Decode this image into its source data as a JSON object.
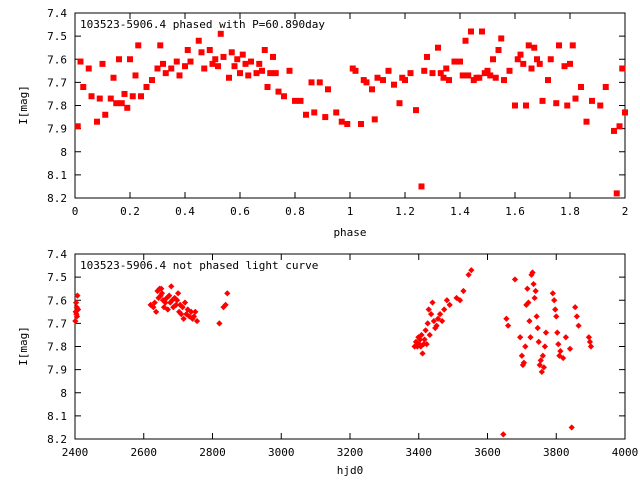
{
  "chart_data": [
    {
      "type": "scatter",
      "title": "103523-5906.4 phased with P=60.890day",
      "xlabel": "phase",
      "ylabel": "I[mag]",
      "xlim": [
        0,
        2
      ],
      "ylim": [
        8.2,
        7.4
      ],
      "y_inverted": true,
      "x_ticks": [
        "0",
        "0.2",
        "0.4",
        "0.6",
        "0.8",
        "1",
        "1.2",
        "1.4",
        "1.6",
        "1.8",
        "2"
      ],
      "y_ticks": [
        "7.4",
        "7.5",
        "7.6",
        "7.7",
        "7.8",
        "7.9",
        "8",
        "8.1",
        "8.2"
      ],
      "marker_color": "#ff0000",
      "grid": false,
      "points": [
        [
          0.01,
          7.89
        ],
        [
          0.02,
          7.61
        ],
        [
          0.03,
          7.72
        ],
        [
          0.05,
          7.64
        ],
        [
          0.06,
          7.76
        ],
        [
          0.08,
          7.87
        ],
        [
          0.09,
          7.77
        ],
        [
          0.1,
          7.62
        ],
        [
          0.11,
          7.84
        ],
        [
          0.13,
          7.77
        ],
        [
          0.14,
          7.68
        ],
        [
          0.15,
          7.79
        ],
        [
          0.16,
          7.6
        ],
        [
          0.17,
          7.79
        ],
        [
          0.18,
          7.75
        ],
        [
          0.19,
          7.81
        ],
        [
          0.2,
          7.6
        ],
        [
          0.21,
          7.76
        ],
        [
          0.22,
          7.67
        ],
        [
          0.23,
          7.54
        ],
        [
          0.24,
          7.76
        ],
        [
          0.26,
          7.72
        ],
        [
          0.28,
          7.69
        ],
        [
          0.3,
          7.64
        ],
        [
          0.31,
          7.54
        ],
        [
          0.32,
          7.62
        ],
        [
          0.33,
          7.66
        ],
        [
          0.35,
          7.64
        ],
        [
          0.37,
          7.61
        ],
        [
          0.38,
          7.67
        ],
        [
          0.4,
          7.63
        ],
        [
          0.41,
          7.56
        ],
        [
          0.42,
          7.61
        ],
        [
          0.45,
          7.52
        ],
        [
          0.46,
          7.57
        ],
        [
          0.47,
          7.64
        ],
        [
          0.49,
          7.56
        ],
        [
          0.5,
          7.62
        ],
        [
          0.51,
          7.6
        ],
        [
          0.52,
          7.63
        ],
        [
          0.53,
          7.49
        ],
        [
          0.54,
          7.59
        ],
        [
          0.56,
          7.68
        ],
        [
          0.57,
          7.57
        ],
        [
          0.58,
          7.63
        ],
        [
          0.59,
          7.6
        ],
        [
          0.6,
          7.66
        ],
        [
          0.61,
          7.58
        ],
        [
          0.62,
          7.62
        ],
        [
          0.63,
          7.67
        ],
        [
          0.64,
          7.61
        ],
        [
          0.66,
          7.66
        ],
        [
          0.67,
          7.62
        ],
        [
          0.68,
          7.65
        ],
        [
          0.69,
          7.56
        ],
        [
          0.7,
          7.72
        ],
        [
          0.71,
          7.66
        ],
        [
          0.72,
          7.59
        ],
        [
          0.73,
          7.66
        ],
        [
          0.74,
          7.74
        ],
        [
          0.76,
          7.76
        ],
        [
          0.78,
          7.65
        ],
        [
          0.8,
          7.78
        ],
        [
          0.82,
          7.78
        ],
        [
          0.84,
          7.84
        ],
        [
          0.86,
          7.7
        ],
        [
          0.87,
          7.83
        ],
        [
          0.89,
          7.7
        ],
        [
          0.91,
          7.85
        ],
        [
          0.92,
          7.73
        ],
        [
          0.95,
          7.83
        ],
        [
          0.97,
          7.87
        ],
        [
          0.99,
          7.88
        ],
        [
          1.01,
          7.64
        ],
        [
          1.02,
          7.65
        ],
        [
          1.04,
          7.88
        ],
        [
          1.05,
          7.69
        ],
        [
          1.06,
          7.7
        ],
        [
          1.08,
          7.73
        ],
        [
          1.09,
          7.86
        ],
        [
          1.1,
          7.68
        ],
        [
          1.12,
          7.69
        ],
        [
          1.14,
          7.65
        ],
        [
          1.16,
          7.71
        ],
        [
          1.18,
          7.79
        ],
        [
          1.19,
          7.68
        ],
        [
          1.2,
          7.69
        ],
        [
          1.22,
          7.66
        ],
        [
          1.24,
          7.82
        ],
        [
          1.26,
          8.15
        ],
        [
          1.27,
          7.65
        ],
        [
          1.28,
          7.59
        ],
        [
          1.3,
          7.66
        ],
        [
          1.32,
          7.55
        ],
        [
          1.33,
          7.66
        ],
        [
          1.34,
          7.68
        ],
        [
          1.35,
          7.64
        ],
        [
          1.36,
          7.69
        ],
        [
          1.38,
          7.61
        ],
        [
          1.4,
          7.61
        ],
        [
          1.41,
          7.67
        ],
        [
          1.42,
          7.52
        ],
        [
          1.43,
          7.67
        ],
        [
          1.44,
          7.48
        ],
        [
          1.45,
          7.69
        ],
        [
          1.46,
          7.68
        ],
        [
          1.47,
          7.68
        ],
        [
          1.48,
          7.48
        ],
        [
          1.49,
          7.66
        ],
        [
          1.5,
          7.65
        ],
        [
          1.51,
          7.67
        ],
        [
          1.52,
          7.6
        ],
        [
          1.53,
          7.68
        ],
        [
          1.54,
          7.56
        ],
        [
          1.55,
          7.51
        ],
        [
          1.56,
          7.69
        ],
        [
          1.58,
          7.65
        ],
        [
          1.6,
          7.8
        ],
        [
          1.61,
          7.6
        ],
        [
          1.62,
          7.58
        ],
        [
          1.63,
          7.62
        ],
        [
          1.64,
          7.8
        ],
        [
          1.65,
          7.54
        ],
        [
          1.66,
          7.64
        ],
        [
          1.67,
          7.55
        ],
        [
          1.68,
          7.6
        ],
        [
          1.69,
          7.62
        ],
        [
          1.7,
          7.78
        ],
        [
          1.72,
          7.69
        ],
        [
          1.73,
          7.6
        ],
        [
          1.75,
          7.79
        ],
        [
          1.76,
          7.54
        ],
        [
          1.78,
          7.63
        ],
        [
          1.79,
          7.8
        ],
        [
          1.8,
          7.62
        ],
        [
          1.81,
          7.54
        ],
        [
          1.82,
          7.77
        ],
        [
          1.84,
          7.72
        ],
        [
          1.86,
          7.87
        ],
        [
          1.88,
          7.78
        ],
        [
          1.91,
          7.8
        ],
        [
          1.93,
          7.72
        ],
        [
          1.96,
          7.91
        ],
        [
          1.97,
          8.18
        ],
        [
          1.98,
          7.89
        ],
        [
          1.99,
          7.64
        ],
        [
          2.0,
          7.83
        ]
      ]
    },
    {
      "type": "scatter",
      "title": "103523-5906.4 not phased light curve",
      "xlabel": "hjd0",
      "ylabel": "I[mag]",
      "xlim": [
        2400,
        4000
      ],
      "ylim": [
        8.2,
        7.4
      ],
      "y_inverted": true,
      "x_ticks": [
        "2400",
        "2600",
        "2800",
        "3000",
        "3200",
        "3400",
        "3600",
        "3800",
        "4000"
      ],
      "y_ticks": [
        "7.4",
        "7.5",
        "7.6",
        "7.7",
        "7.8",
        "7.9",
        "8",
        "8.1",
        "8.2"
      ],
      "marker_color": "#ff0000",
      "grid": false,
      "points": [
        [
          2401,
          7.69
        ],
        [
          2402,
          7.65
        ],
        [
          2403,
          7.61
        ],
        [
          2404,
          7.66
        ],
        [
          2405,
          7.63
        ],
        [
          2406,
          7.67
        ],
        [
          2407,
          7.58
        ],
        [
          2409,
          7.64
        ],
        [
          2620,
          7.62
        ],
        [
          2628,
          7.63
        ],
        [
          2632,
          7.61
        ],
        [
          2636,
          7.65
        ],
        [
          2640,
          7.56
        ],
        [
          2643,
          7.59
        ],
        [
          2646,
          7.55
        ],
        [
          2649,
          7.58
        ],
        [
          2651,
          7.55
        ],
        [
          2653,
          7.57
        ],
        [
          2656,
          7.6
        ],
        [
          2659,
          7.63
        ],
        [
          2663,
          7.61
        ],
        [
          2667,
          7.59
        ],
        [
          2670,
          7.64
        ],
        [
          2674,
          7.58
        ],
        [
          2677,
          7.61
        ],
        [
          2680,
          7.54
        ],
        [
          2683,
          7.6
        ],
        [
          2686,
          7.63
        ],
        [
          2690,
          7.59
        ],
        [
          2694,
          7.62
        ],
        [
          2697,
          7.6
        ],
        [
          2700,
          7.57
        ],
        [
          2703,
          7.65
        ],
        [
          2706,
          7.62
        ],
        [
          2709,
          7.66
        ],
        [
          2713,
          7.63
        ],
        [
          2716,
          7.68
        ],
        [
          2720,
          7.61
        ],
        [
          2724,
          7.66
        ],
        [
          2728,
          7.64
        ],
        [
          2733,
          7.67
        ],
        [
          2738,
          7.65
        ],
        [
          2742,
          7.68
        ],
        [
          2746,
          7.67
        ],
        [
          2750,
          7.65
        ],
        [
          2755,
          7.69
        ],
        [
          2820,
          7.7
        ],
        [
          2832,
          7.63
        ],
        [
          2838,
          7.62
        ],
        [
          2843,
          7.57
        ],
        [
          3388,
          7.8
        ],
        [
          3392,
          7.78
        ],
        [
          3396,
          7.8
        ],
        [
          3399,
          7.76
        ],
        [
          3402,
          7.79
        ],
        [
          3404,
          7.77
        ],
        [
          3406,
          7.8
        ],
        [
          3408,
          7.75
        ],
        [
          3411,
          7.83
        ],
        [
          3414,
          7.79
        ],
        [
          3417,
          7.77
        ],
        [
          3420,
          7.73
        ],
        [
          3423,
          7.79
        ],
        [
          3426,
          7.7
        ],
        [
          3429,
          7.64
        ],
        [
          3432,
          7.75
        ],
        [
          3436,
          7.66
        ],
        [
          3440,
          7.61
        ],
        [
          3444,
          7.69
        ],
        [
          3448,
          7.72
        ],
        [
          3452,
          7.71
        ],
        [
          3456,
          7.68
        ],
        [
          3462,
          7.66
        ],
        [
          3468,
          7.69
        ],
        [
          3474,
          7.64
        ],
        [
          3482,
          7.6
        ],
        [
          3490,
          7.62
        ],
        [
          3510,
          7.59
        ],
        [
          3520,
          7.6
        ],
        [
          3530,
          7.56
        ],
        [
          3545,
          7.49
        ],
        [
          3553,
          7.47
        ],
        [
          3646,
          8.18
        ],
        [
          3655,
          7.68
        ],
        [
          3660,
          7.71
        ],
        [
          3680,
          7.51
        ],
        [
          3695,
          7.76
        ],
        [
          3700,
          7.84
        ],
        [
          3703,
          7.88
        ],
        [
          3706,
          7.87
        ],
        [
          3710,
          7.8
        ],
        [
          3713,
          7.62
        ],
        [
          3716,
          7.55
        ],
        [
          3719,
          7.61
        ],
        [
          3722,
          7.69
        ],
        [
          3725,
          7.76
        ],
        [
          3728,
          7.49
        ],
        [
          3731,
          7.48
        ],
        [
          3734,
          7.53
        ],
        [
          3737,
          7.59
        ],
        [
          3740,
          7.56
        ],
        [
          3743,
          7.67
        ],
        [
          3746,
          7.72
        ],
        [
          3749,
          7.78
        ],
        [
          3752,
          7.88
        ],
        [
          3755,
          7.86
        ],
        [
          3758,
          7.91
        ],
        [
          3761,
          7.84
        ],
        [
          3764,
          7.89
        ],
        [
          3767,
          7.8
        ],
        [
          3770,
          7.74
        ],
        [
          3790,
          7.57
        ],
        [
          3794,
          7.6
        ],
        [
          3797,
          7.64
        ],
        [
          3800,
          7.67
        ],
        [
          3803,
          7.74
        ],
        [
          3806,
          7.79
        ],
        [
          3809,
          7.84
        ],
        [
          3812,
          7.82
        ],
        [
          3820,
          7.85
        ],
        [
          3828,
          7.76
        ],
        [
          3840,
          7.81
        ],
        [
          3845,
          8.15
        ],
        [
          3855,
          7.63
        ],
        [
          3860,
          7.67
        ],
        [
          3865,
          7.71
        ],
        [
          3895,
          7.76
        ],
        [
          3898,
          7.78
        ],
        [
          3901,
          7.8
        ]
      ]
    }
  ]
}
